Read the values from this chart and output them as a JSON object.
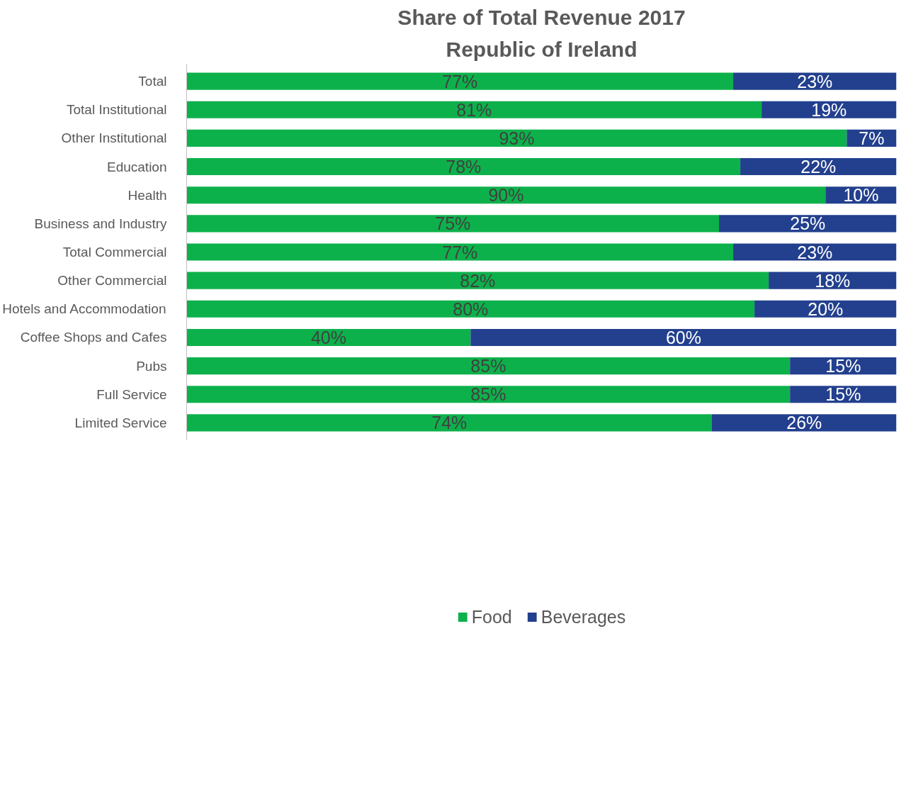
{
  "chart_data": {
    "type": "bar",
    "orientation": "horizontal",
    "stacked": true,
    "title": "Share of Total Revenue 2017",
    "subtitle": "Republic of Ireland",
    "categories": [
      "Total",
      "Total Institutional",
      "Other Institutional",
      "Education",
      "Health",
      "Business and Industry",
      "Total Commercial",
      "Other Commercial",
      "Hotels and Accommodation",
      "Coffee Shops and Cafes",
      "Pubs",
      "Full Service",
      "Limited Service"
    ],
    "series": [
      {
        "name": "Food",
        "color": "#0db14b",
        "values": [
          77,
          81,
          93,
          78,
          90,
          75,
          77,
          82,
          80,
          40,
          85,
          85,
          74
        ],
        "value_labels": [
          "77%",
          "81%",
          "93%",
          "78%",
          "90%",
          "75%",
          "77%",
          "82%",
          "80%",
          "40%",
          "85%",
          "85%",
          "74%"
        ]
      },
      {
        "name": "Beverages",
        "color": "#23408e",
        "values": [
          23,
          19,
          7,
          22,
          10,
          25,
          23,
          18,
          20,
          60,
          15,
          15,
          26
        ],
        "value_labels": [
          "23%",
          "19%",
          "7%",
          "22%",
          "10%",
          "25%",
          "23%",
          "18%",
          "20%",
          "60%",
          "15%",
          "15%",
          "26%"
        ]
      }
    ],
    "grid": false,
    "legend": "bottom",
    "tick_labels": "y"
  }
}
